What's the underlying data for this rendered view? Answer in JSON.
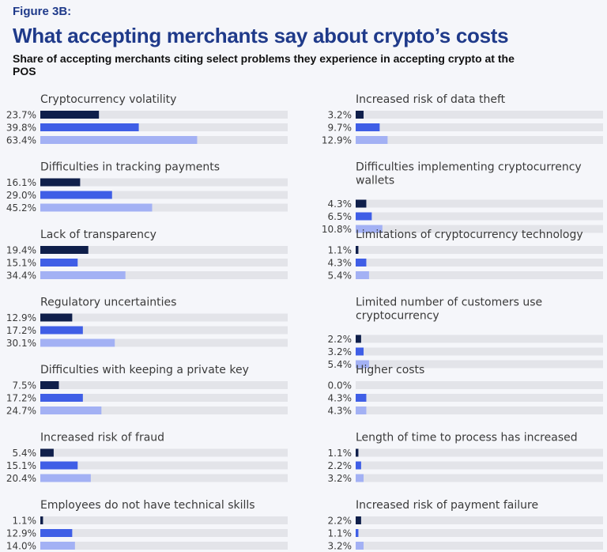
{
  "figure_label": "Figure 3B:",
  "title": "What accepting merchants say about crypto’s costs",
  "subtitle": "Share of accepting merchants citing select problems they experience in accepting crypto at the POS",
  "colors": {
    "track": "#e3e4e9",
    "series": [
      "#0f1f4b",
      "#3f5ee6",
      "#a3b1f4"
    ]
  },
  "chart_data": {
    "type": "bar",
    "orientation": "horizontal",
    "xlim": [
      0,
      100
    ],
    "series_names": [
      "",
      "",
      ""
    ],
    "panels": [
      {
        "category": [
          "Cryptocurrency volatility"
        ],
        "values": [
          23.7,
          39.8,
          63.4
        ],
        "labels": [
          "23.7%",
          "39.8%",
          "63.4%"
        ]
      },
      {
        "category": [
          "Difficulties in tracking payments"
        ],
        "values": [
          16.1,
          29.0,
          45.2
        ],
        "labels": [
          "16.1%",
          "29.0%",
          "45.2%"
        ]
      },
      {
        "category": [
          "Lack of transparency"
        ],
        "values": [
          19.4,
          15.1,
          34.4
        ],
        "labels": [
          "19.4%",
          "15.1%",
          "34.4%"
        ]
      },
      {
        "category": [
          "Regulatory uncertainties"
        ],
        "values": [
          12.9,
          17.2,
          30.1
        ],
        "labels": [
          "12.9%",
          "17.2%",
          "30.1%"
        ]
      },
      {
        "category": [
          "Difficulties with keeping a private key"
        ],
        "values": [
          7.5,
          17.2,
          24.7
        ],
        "labels": [
          "7.5%",
          "17.2%",
          "24.7%"
        ]
      },
      {
        "category": [
          "Increased risk of fraud"
        ],
        "values": [
          5.4,
          15.1,
          20.4
        ],
        "labels": [
          "5.4%",
          "15.1%",
          "20.4%"
        ]
      },
      {
        "category": [
          "Employees do not have technical skills"
        ],
        "values": [
          1.1,
          12.9,
          14.0
        ],
        "labels": [
          "1.1%",
          "12.9%",
          "14.0%"
        ]
      },
      {
        "category": [
          "Increased risk of data theft"
        ],
        "values": [
          3.2,
          9.7,
          12.9
        ],
        "labels": [
          "3.2%",
          "9.7%",
          "12.9%"
        ]
      },
      {
        "category": [
          "Difficulties implementing cryptocurrency",
          "wallets"
        ],
        "values": [
          4.3,
          6.5,
          10.8
        ],
        "labels": [
          "4.3%",
          "6.5%",
          "10.8%"
        ]
      },
      {
        "category": [
          "Limitations of cryptocurrency technology"
        ],
        "values": [
          1.1,
          4.3,
          5.4
        ],
        "labels": [
          "1.1%",
          "4.3%",
          "5.4%"
        ]
      },
      {
        "category": [
          "Limited number of customers use",
          "cryptocurrency"
        ],
        "values": [
          2.2,
          3.2,
          5.4
        ],
        "labels": [
          "2.2%",
          "3.2%",
          "5.4%"
        ]
      },
      {
        "category": [
          "Higher costs"
        ],
        "values": [
          0.0,
          4.3,
          4.3
        ],
        "labels": [
          "0.0%",
          "4.3%",
          "4.3%"
        ]
      },
      {
        "category": [
          "Length of time to process has increased"
        ],
        "values": [
          1.1,
          2.2,
          3.2
        ],
        "labels": [
          "1.1%",
          "2.2%",
          "3.2%"
        ]
      },
      {
        "category": [
          "Increased risk of payment failure"
        ],
        "values": [
          2.2,
          1.1,
          3.2
        ],
        "labels": [
          "2.2%",
          "1.1%",
          "3.2%"
        ]
      }
    ]
  }
}
